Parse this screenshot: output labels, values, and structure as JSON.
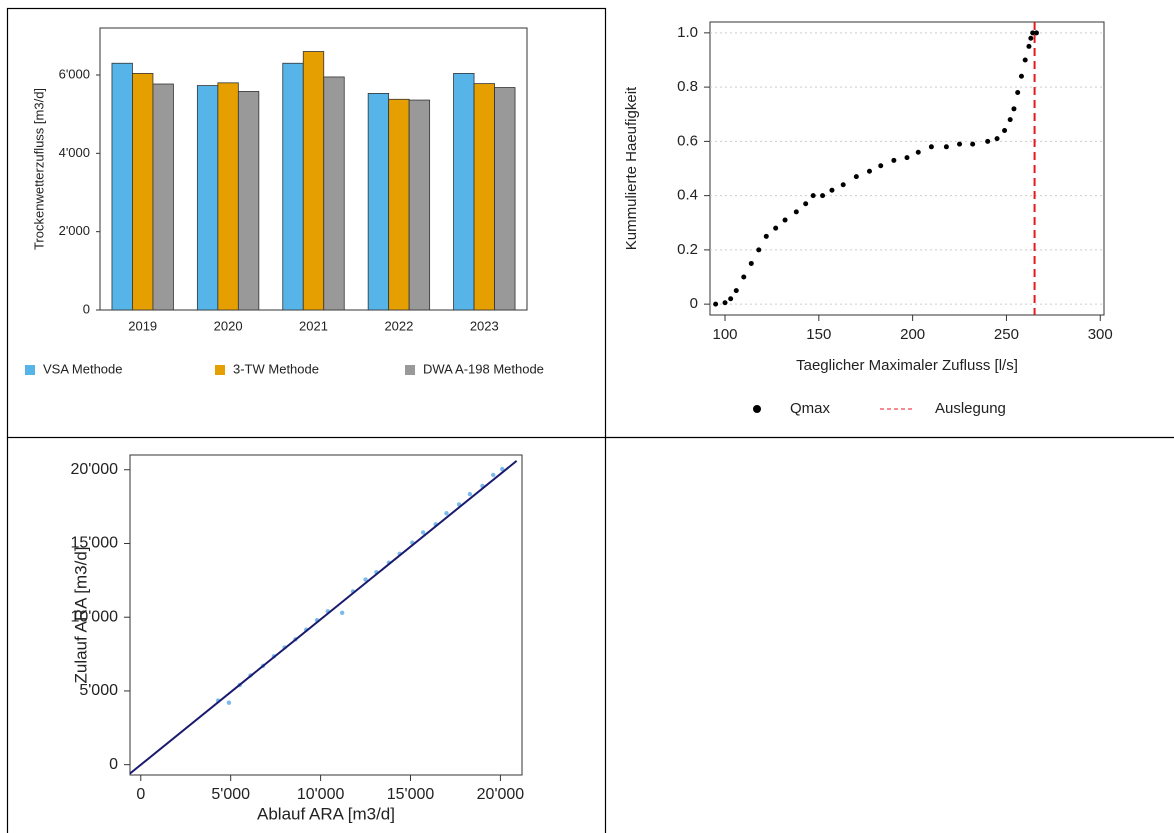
{
  "chart_data": [
    {
      "type": "bar",
      "y_label": "Trockenwetterzufluss [m3/d]",
      "categories": [
        "2019",
        "2020",
        "2021",
        "2022",
        "2023"
      ],
      "series": [
        {
          "name": "VSA Methode",
          "color": "#56b4e9",
          "values": [
            6300,
            5730,
            6300,
            5530,
            6040
          ]
        },
        {
          "name": "3-TW Methode",
          "color": "#e69f00",
          "values": [
            6040,
            5800,
            6600,
            5380,
            5780
          ]
        },
        {
          "name": "DWA A-198 Methode",
          "color": "#999999",
          "values": [
            5770,
            5580,
            5950,
            5360,
            5680
          ]
        }
      ],
      "ylim": [
        0,
        7200
      ],
      "yticks": [
        0,
        {
          "value": 2000,
          "label": "2'000"
        },
        {
          "value": 4000,
          "label": "4'000"
        },
        {
          "value": 6000,
          "label": "6'000"
        }
      ],
      "legend": "bottom"
    },
    {
      "type": "scatter",
      "x_label": "Taeglicher Maximaler Zufluss [l/s]",
      "y_label": "Kummulierte Haeufigkeit",
      "series": [
        {
          "name": "Qmax",
          "color": "#000000",
          "x": [
            95,
            100,
            103,
            106,
            110,
            114,
            118,
            122,
            127,
            132,
            138,
            143,
            147,
            152,
            157,
            163,
            170,
            177,
            183,
            190,
            197,
            203,
            210,
            218,
            225,
            232,
            240,
            245,
            249,
            252,
            254,
            256,
            258,
            260,
            262,
            263,
            264,
            266
          ],
          "values": [
            0,
            0.005,
            0.02,
            0.05,
            0.1,
            0.15,
            0.2,
            0.25,
            0.28,
            0.31,
            0.34,
            0.37,
            0.4,
            0.4,
            0.42,
            0.44,
            0.47,
            0.49,
            0.51,
            0.53,
            0.54,
            0.56,
            0.58,
            0.58,
            0.59,
            0.59,
            0.6,
            0.61,
            0.64,
            0.68,
            0.72,
            0.78,
            0.84,
            0.9,
            0.95,
            0.98,
            1.0,
            1.0
          ]
        }
      ],
      "vline": {
        "name": "Auslegung",
        "color": "#e41a1c",
        "value": 265
      },
      "xlim": [
        92,
        302
      ],
      "xticks": [
        100,
        150,
        200,
        250,
        300
      ],
      "ylim": [
        -0.04,
        1.04
      ],
      "yticks": [
        0.0,
        0.2,
        0.4,
        0.6,
        0.8,
        {
          "value": 1.0,
          "label": "1.0"
        }
      ],
      "grid": true,
      "legend": "bottom"
    },
    {
      "type": "scatter",
      "x_label": "Ablauf ARA [m3/d]",
      "y_label": "Zulauf ARA [m3/d]",
      "series": [
        {
          "color": "#5aa9e6",
          "style": "points",
          "x": [
            4300,
            4900,
            5500,
            6100,
            6800,
            7400,
            8000,
            8600,
            9200,
            9800,
            10400,
            11200,
            11800,
            12500,
            13100,
            13800,
            14400,
            15100,
            15700,
            16400,
            17000,
            17700,
            18300,
            19000,
            19600,
            20100
          ],
          "values": [
            4350,
            4200,
            5400,
            6050,
            6700,
            7350,
            7950,
            8500,
            9150,
            9800,
            10400,
            10300,
            11750,
            12550,
            13050,
            13700,
            14300,
            15050,
            15750,
            16300,
            17050,
            17650,
            18350,
            18900,
            19650,
            20050
          ]
        },
        {
          "color": "#1a1a6e",
          "style": "line",
          "x": [
            -600,
            20900
          ],
          "values": [
            -600,
            20600
          ]
        }
      ],
      "xlim": [
        -600,
        21200
      ],
      "xticks": [
        0,
        {
          "value": 5000,
          "label": "5'000"
        },
        {
          "value": 10000,
          "label": "10'000"
        },
        {
          "value": 15000,
          "label": "15'000"
        },
        {
          "value": 20000,
          "label": "20'000"
        }
      ],
      "ylim": [
        -700,
        21000
      ],
      "yticks": [
        0,
        {
          "value": 5000,
          "label": "5'000"
        },
        {
          "value": 10000,
          "label": "10'000"
        },
        {
          "value": 15000,
          "label": "15'000"
        },
        {
          "value": 20000,
          "label": "20'000"
        }
      ]
    }
  ]
}
